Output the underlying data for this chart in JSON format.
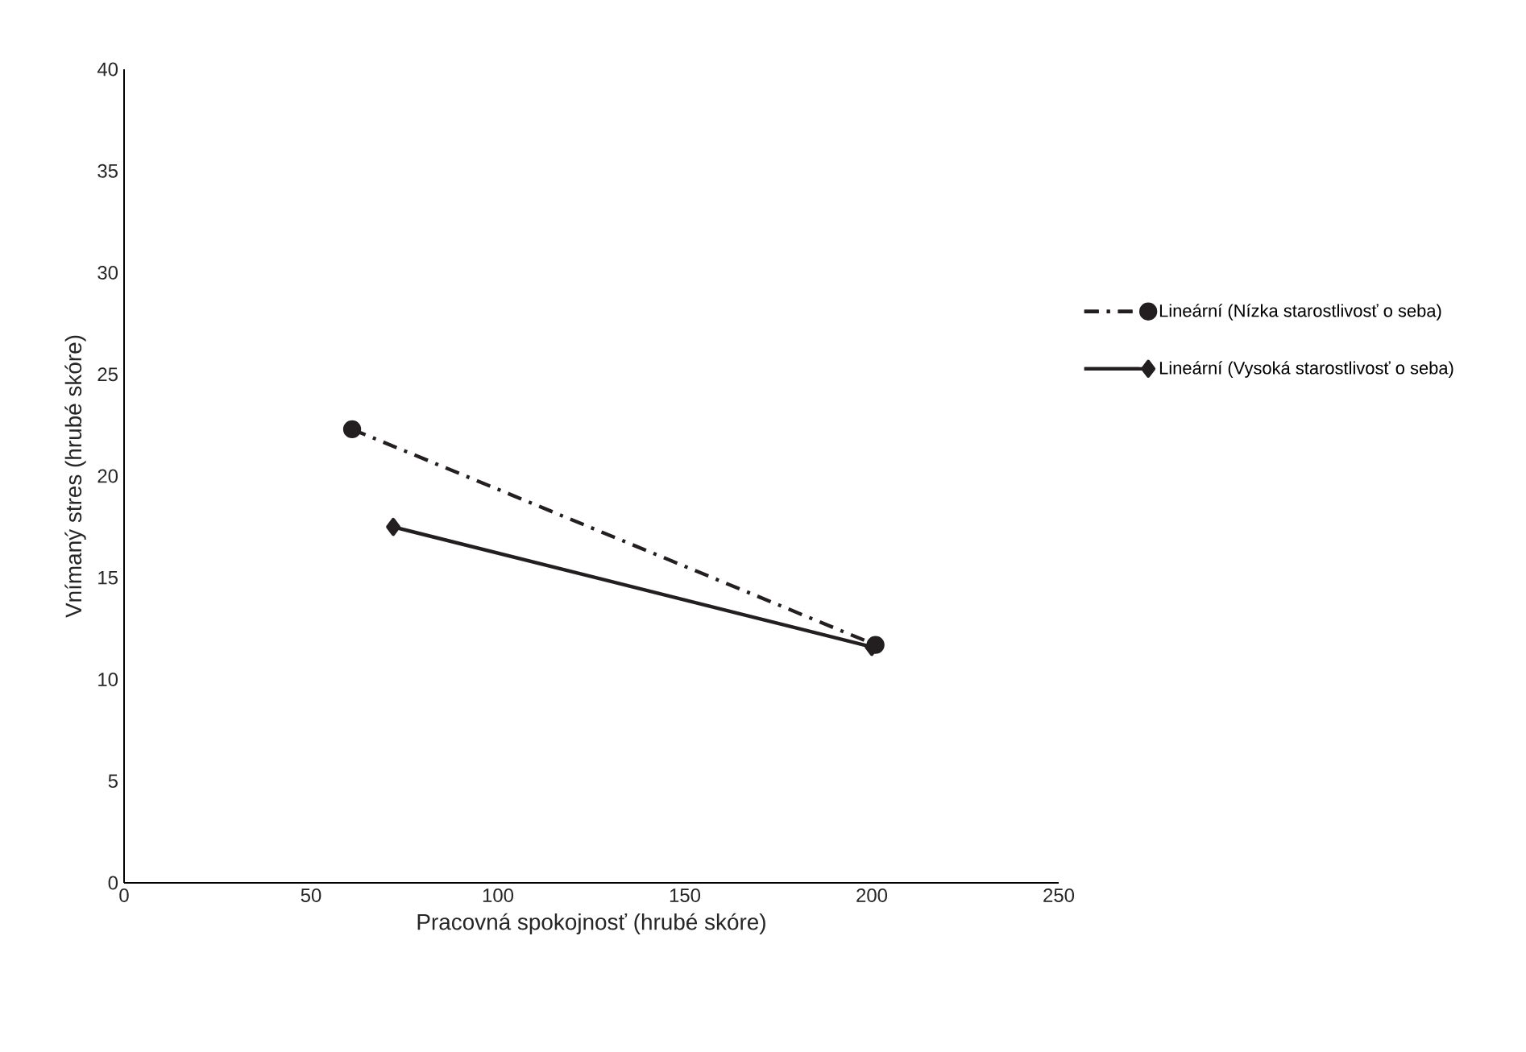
{
  "chart_data": {
    "type": "line",
    "xlabel": "Pracovná spokojnosť (hrubé skóre)",
    "ylabel": "Vnímaný stres (hrubé skóre)",
    "xlim": [
      0,
      250
    ],
    "xticks": [
      0,
      50,
      100,
      150,
      200,
      250
    ],
    "ylim": [
      0,
      40
    ],
    "yticks": [
      0,
      5,
      10,
      15,
      20,
      25,
      30,
      35,
      40
    ],
    "legend": "right",
    "grid": false,
    "series": [
      {
        "name": "Lineární (Nízka starostlivosť o seba)",
        "color": "#231f20",
        "x": [
          61,
          201
        ],
        "values": [
          22.3,
          11.7
        ],
        "marker": "circle",
        "line_style": "dashdot"
      },
      {
        "name": "Lineární (Vysoká starostlivosť o seba)",
        "color": "#231f20",
        "x": [
          72,
          200
        ],
        "values": [
          17.5,
          11.6
        ],
        "marker": "diamond",
        "line_style": "solid"
      }
    ]
  }
}
